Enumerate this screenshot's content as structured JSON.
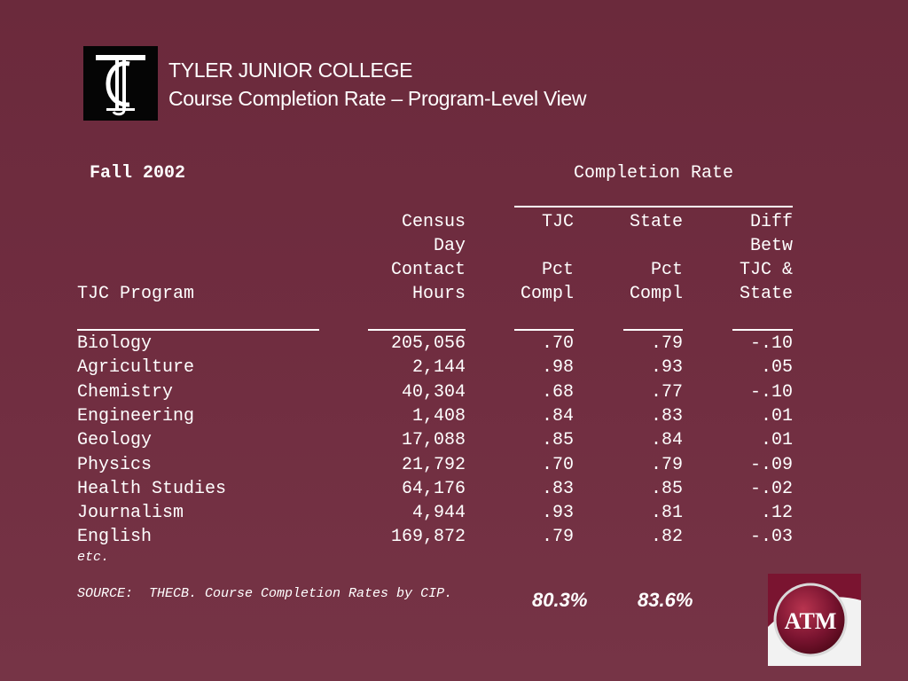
{
  "header": {
    "logo_text": "TJC",
    "title_line1": "TYLER JUNIOR COLLEGE",
    "title_line2": "Course Completion Rate – Program-Level View"
  },
  "term": "Fall 2002",
  "completion_rate_heading": "Completion Rate",
  "columns": {
    "program": [
      "TJC Program"
    ],
    "hours": [
      "Census",
      "Day",
      "Contact",
      "Hours"
    ],
    "tjc": [
      "TJC",
      "",
      "Pct",
      "Compl"
    ],
    "state": [
      "State",
      "",
      "Pct",
      "Compl"
    ],
    "diff": [
      "Diff",
      "Betw",
      "TJC &",
      "State"
    ]
  },
  "rows": [
    {
      "program": "Biology",
      "hours": "205,056",
      "tjc": ".70",
      "state": ".79",
      "diff": "-.10"
    },
    {
      "program": "Agriculture",
      "hours": "2,144",
      "tjc": ".98",
      "state": ".93",
      "diff": ".05"
    },
    {
      "program": "Chemistry",
      "hours": "40,304",
      "tjc": ".68",
      "state": ".77",
      "diff": "-.10"
    },
    {
      "program": "Engineering",
      "hours": "1,408",
      "tjc": ".84",
      "state": ".83",
      "diff": ".01"
    },
    {
      "program": "Geology",
      "hours": "17,088",
      "tjc": ".85",
      "state": ".84",
      "diff": ".01"
    },
    {
      "program": "Physics",
      "hours": "21,792",
      "tjc": ".70",
      "state": ".79",
      "diff": "-.09"
    },
    {
      "program": "Health Studies",
      "hours": "64,176",
      "tjc": ".83",
      "state": ".85",
      "diff": "-.02"
    },
    {
      "program": "Journalism",
      "hours": "4,944",
      "tjc": ".93",
      "state": ".81",
      "diff": ".12"
    },
    {
      "program": "English",
      "hours": "169,872",
      "tjc": ".79",
      "state": ".82",
      "diff": "-.03"
    }
  ],
  "etc_note": "etc.",
  "source_note": "SOURCE:  THECB. Course Completion Rates by CIP.",
  "totals": {
    "tjc": "80.3%",
    "state": "83.6%"
  },
  "am_logo_text": "ATM",
  "colors": {
    "background": "#702d40",
    "text": "#ffffff",
    "am_maroon": "#6a0f25"
  }
}
